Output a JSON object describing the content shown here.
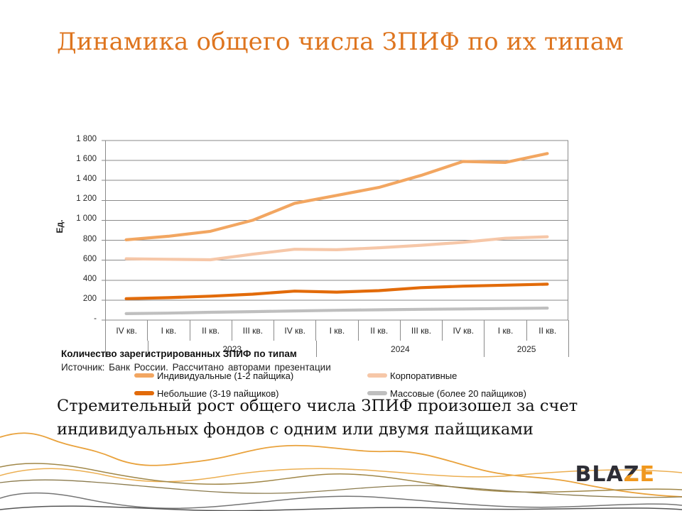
{
  "title": "Динамика общего числа ЗПИФ по их типам",
  "colors": {
    "title_orange": "#DE751F",
    "logo_dark": "#2E2E36",
    "logo_orange": "#F0981E",
    "gridline": "#8a8a8a"
  },
  "chart_data": {
    "type": "line",
    "y_axis_title": "Ед.",
    "ylim": [
      0,
      1800
    ],
    "y_step": 200,
    "y_tick_labels": [
      "1 800",
      "1 600",
      "1 400",
      "1 200",
      "1 000",
      "800",
      "600",
      "400",
      "200",
      "-"
    ],
    "grid": true,
    "legend_position": "bottom",
    "categories": [
      "IV кв.",
      "I кв.",
      "II кв.",
      "III кв.",
      "IV кв.",
      "I кв.",
      "II кв.",
      "III кв.",
      "IV кв.",
      "I кв.",
      "II кв."
    ],
    "year_groups": [
      {
        "label": "",
        "span": 1
      },
      {
        "label": "2023",
        "span": 4
      },
      {
        "label": "2024",
        "span": 4
      },
      {
        "label": "2025",
        "span": 2
      }
    ],
    "series": [
      {
        "name": "Индивидуальные (1-2 пайщика)",
        "color": "#F2A661",
        "values": [
          805,
          840,
          890,
          1000,
          1170,
          1250,
          1330,
          1450,
          1590,
          1580,
          1670
        ]
      },
      {
        "name": "Корпоративные",
        "color": "#F6C7A8",
        "values": [
          615,
          610,
          605,
          660,
          710,
          705,
          725,
          750,
          780,
          820,
          835
        ]
      },
      {
        "name": "Небольшие  (3-19 пайщиков)",
        "color": "#E26B0A",
        "values": [
          215,
          225,
          240,
          260,
          290,
          280,
          295,
          325,
          340,
          350,
          360
        ]
      },
      {
        "name": "Массовые (более 20 пайщиков)",
        "color": "#BFBFBF",
        "values": [
          65,
          70,
          78,
          85,
          92,
          98,
          103,
          108,
          112,
          116,
          120
        ]
      }
    ]
  },
  "caption": {
    "title": "Количество зарегистрированных ЗПИФ по типам",
    "source": "Источник: Банк России. Рассчитано авторами презентации"
  },
  "takeaway": "Стремительный рост общего числа ЗПИФ произошел за счет индивидуальных фондов с одним или двумя пайщиками",
  "logo": {
    "part_dark": "BLA",
    "part_split": "Z",
    "part_orange": "E"
  }
}
